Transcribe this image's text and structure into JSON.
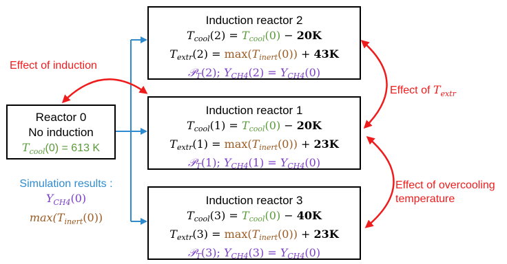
{
  "reactor0": {
    "line1": "Reactor 0",
    "line2": "No induction",
    "tcool_var": "T",
    "tcool_sub": "cool",
    "tcool_rest": "(0) = 613 K"
  },
  "reactors": [
    {
      "title": "Induction reactor 2",
      "idx": "2",
      "cool_delta": "20K",
      "extr_delta": "43K"
    },
    {
      "title": "Induction reactor 1",
      "idx": "1",
      "cool_delta": "20K",
      "extr_delta": "23K"
    },
    {
      "title": "Induction reactor 3",
      "idx": "3",
      "cool_delta": "40K",
      "extr_delta": "23K"
    }
  ],
  "labels": {
    "effect_induction": "Effect of induction",
    "effect_textr_prefix": "Effect of ",
    "effect_textr_var": "T",
    "effect_textr_sub": "extr",
    "effect_overcooling_1": "Effect of overcooling",
    "effect_overcooling_2": "temperature",
    "sim_results": "Simulation results :",
    "sim_y": "Y",
    "sim_y_sub": "CH4",
    "sim_y_rest": "(0)",
    "sim_max": "max(T",
    "sim_max_sub": "inert",
    "sim_max_rest": "(0))"
  },
  "colors": {
    "green": "#5a9a3b",
    "brown": "#9a5a22",
    "purple": "#7b3fc6",
    "blue": "#2e8bd0",
    "red": "#ee1c1c"
  }
}
